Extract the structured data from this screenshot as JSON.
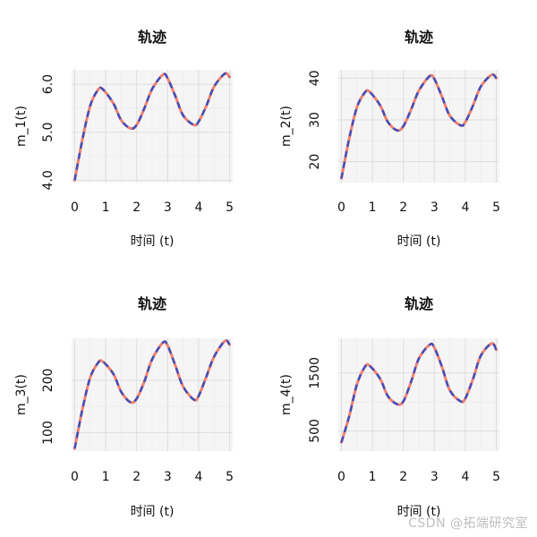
{
  "watermark": "CSDN @拓端研究室",
  "style": {
    "panel_bg": "#f5f5f5",
    "grid_major": "#dddddd",
    "grid_minor": "#ececec",
    "true_line": "#f08070",
    "fit_line": "#3a4fc0"
  },
  "chart_data": [
    {
      "type": "line",
      "title": "轨迹",
      "xlabel": "时间 (t)",
      "ylabel": "m_1(t)",
      "xlim": [
        -0.1,
        5.1
      ],
      "ylim": [
        3.95,
        6.3
      ],
      "xticks": [
        0,
        1,
        2,
        3,
        4,
        5
      ],
      "yticks": [
        4.0,
        5.0,
        6.0
      ],
      "ytick_labels": [
        "4.0",
        "5.0",
        "6.0"
      ],
      "x": [
        0,
        0.25,
        0.5,
        0.75,
        0.9,
        1.25,
        1.5,
        1.8,
        2.0,
        2.25,
        2.5,
        2.85,
        3.0,
        3.25,
        3.5,
        3.85,
        4.0,
        4.25,
        4.5,
        4.85,
        5.0
      ],
      "series": [
        {
          "values": [
            4.0,
            4.85,
            5.55,
            5.88,
            5.9,
            5.6,
            5.25,
            5.08,
            5.15,
            5.5,
            5.9,
            6.2,
            6.12,
            5.75,
            5.35,
            5.15,
            5.22,
            5.55,
            5.95,
            6.22,
            6.15
          ]
        },
        {
          "values": [
            4.0,
            4.85,
            5.55,
            5.88,
            5.9,
            5.6,
            5.25,
            5.08,
            5.15,
            5.5,
            5.9,
            6.2,
            6.12,
            5.75,
            5.35,
            5.15,
            5.22,
            5.55,
            5.95,
            6.22,
            6.15
          ]
        }
      ]
    },
    {
      "type": "line",
      "title": "轨迹",
      "xlabel": "时间 (t)",
      "ylabel": "m_2(t)",
      "xlim": [
        -0.1,
        5.1
      ],
      "ylim": [
        15,
        42
      ],
      "xticks": [
        0,
        1,
        2,
        3,
        4,
        5
      ],
      "yticks": [
        20,
        30,
        40
      ],
      "ytick_labels": [
        "20",
        "30",
        "40"
      ],
      "x": [
        0,
        0.25,
        0.5,
        0.75,
        0.9,
        1.25,
        1.5,
        1.8,
        2.0,
        2.25,
        2.5,
        2.85,
        3.0,
        3.25,
        3.5,
        3.85,
        4.0,
        4.25,
        4.5,
        4.85,
        5.0
      ],
      "series": [
        {
          "values": [
            16,
            25.5,
            33,
            36.5,
            36.8,
            33.5,
            29.5,
            27.5,
            28.5,
            32.5,
            37,
            40.5,
            39.8,
            35.5,
            31,
            28.7,
            29.5,
            33.5,
            38,
            40.8,
            40
          ]
        },
        {
          "values": [
            16,
            25.5,
            33,
            36.5,
            36.8,
            33.5,
            29.5,
            27.5,
            28.5,
            32.5,
            37,
            40.5,
            39.8,
            35.5,
            31,
            28.7,
            29.5,
            33.5,
            38,
            40.8,
            40
          ]
        }
      ]
    },
    {
      "type": "line",
      "title": "轨迹",
      "xlabel": "时间 (t)",
      "ylabel": "m_3(t)",
      "xlim": [
        -0.1,
        5.1
      ],
      "ylim": [
        65,
        280
      ],
      "xticks": [
        0,
        1,
        2,
        3,
        4,
        5
      ],
      "yticks": [
        100,
        200
      ],
      "ytick_labels": [
        "100",
        "200"
      ],
      "x": [
        0,
        0.25,
        0.5,
        0.75,
        0.9,
        1.25,
        1.5,
        1.8,
        2.0,
        2.25,
        2.5,
        2.85,
        3.0,
        3.25,
        3.5,
        3.85,
        4.0,
        4.25,
        4.5,
        4.85,
        5.0
      ],
      "series": [
        {
          "values": [
            70,
            145,
            205,
            233,
            236,
            212,
            178,
            158,
            165,
            198,
            240,
            272,
            266,
            228,
            188,
            163,
            170,
            207,
            245,
            275,
            268
          ]
        },
        {
          "values": [
            70,
            145,
            205,
            233,
            236,
            212,
            178,
            158,
            165,
            198,
            240,
            272,
            266,
            228,
            188,
            163,
            170,
            207,
            245,
            275,
            268
          ]
        }
      ]
    },
    {
      "type": "line",
      "title": "轨迹",
      "xlabel": "时间 (t)",
      "ylabel": "m_4(t)",
      "xlim": [
        -0.1,
        5.1
      ],
      "ylim": [
        150,
        2100
      ],
      "xticks": [
        0,
        1,
        2,
        3,
        4,
        5
      ],
      "yticks": [
        500,
        1500
      ],
      "ytick_labels": [
        "500",
        "1500"
      ],
      "x": [
        0,
        0.25,
        0.5,
        0.75,
        0.9,
        1.25,
        1.5,
        1.8,
        2.0,
        2.25,
        2.5,
        2.85,
        3.0,
        3.25,
        3.5,
        3.85,
        4.0,
        4.25,
        4.5,
        4.85,
        5.0
      ],
      "series": [
        {
          "values": [
            300,
            750,
            1300,
            1600,
            1630,
            1400,
            1100,
            960,
            1010,
            1350,
            1750,
            1990,
            1940,
            1600,
            1200,
            1010,
            1060,
            1400,
            1800,
            2010,
            1900
          ]
        },
        {
          "values": [
            300,
            750,
            1300,
            1600,
            1630,
            1400,
            1100,
            960,
            1010,
            1350,
            1750,
            1990,
            1940,
            1600,
            1200,
            1010,
            1060,
            1400,
            1800,
            2010,
            1900
          ]
        }
      ]
    }
  ]
}
